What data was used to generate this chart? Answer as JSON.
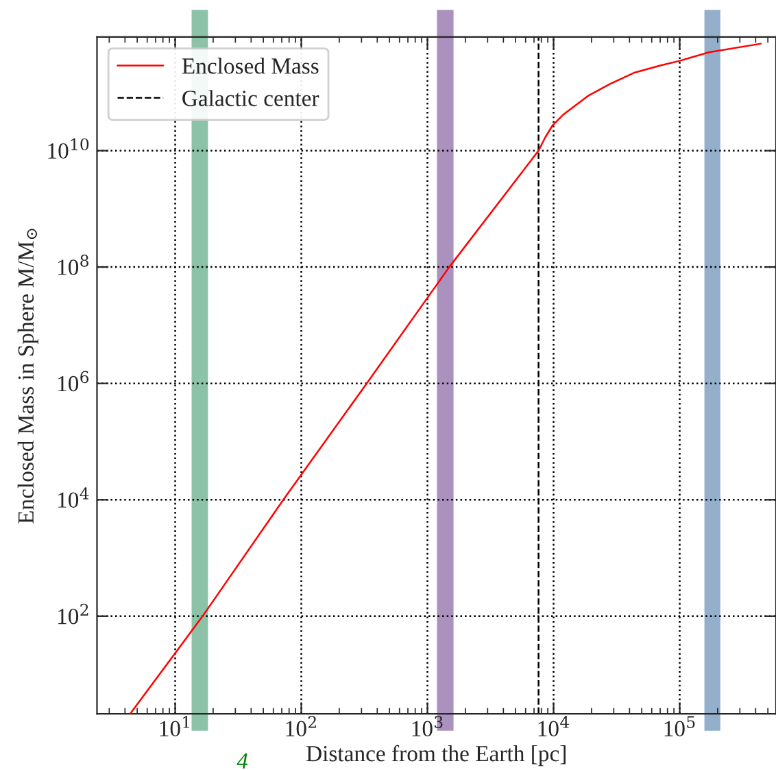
{
  "chart_data": {
    "type": "line",
    "xlabel": "Distance from the Earth [pc]",
    "ylabel": "Enclosed Mass in Sphere M/M$_{⊙}$",
    "log": "xy",
    "x": [
      4.4,
      16.5,
      72,
      330,
      1490,
      7600,
      8600,
      9800,
      12000,
      19000,
      28000,
      44000,
      70000,
      100000,
      170000,
      440000
    ],
    "series": [
      {
        "name": "Enclosed Mass",
        "color": "#ff0000",
        "values": [
          2.1,
          100,
          10000,
          1000000,
          100000000,
          10000000000,
          17000000000,
          27000000000,
          42000000000,
          89000000000,
          140000000000,
          220000000000,
          290000000000,
          350000000000,
          490000000000,
          690000000000
        ]
      }
    ],
    "ref_lines": [
      {
        "axis": "x",
        "value": 7600,
        "label": "Galactic center",
        "color": "#000000",
        "line_style": "dashed"
      }
    ],
    "bands": [
      {
        "axis": "x",
        "from": 13.5,
        "to": 18.2,
        "color": "#8cc2a8"
      },
      {
        "axis": "x",
        "from": 1190,
        "to": 1610,
        "color": "#ab91bd"
      },
      {
        "axis": "x",
        "from": 157000,
        "to": 210000,
        "color": "#93afcc"
      }
    ],
    "xlim": [
      2.4,
      580000
    ],
    "ylim": [
      2.1,
      900000000000
    ],
    "xticks": [
      {
        "value": 10,
        "label": "10$^{1}$"
      },
      {
        "value": 100,
        "label": "10$^{2}$"
      },
      {
        "value": 1000,
        "label": "10$^{3}$"
      },
      {
        "value": 10000,
        "label": "10$^{4}$"
      },
      {
        "value": 100000,
        "label": "10$^{5}$"
      }
    ],
    "yticks": [
      {
        "value": 100,
        "label": "10$^{2}$"
      },
      {
        "value": 10000,
        "label": "10$^{4}$"
      },
      {
        "value": 1000000,
        "label": "10$^{6}$"
      },
      {
        "value": 100000000,
        "label": "10$^{8}$"
      },
      {
        "value": 10000000000,
        "label": "10$^{10}$"
      }
    ],
    "grid": true,
    "legend": "top left",
    "marker": "none",
    "line_style": "solid",
    "annotations": [
      "4"
    ]
  }
}
